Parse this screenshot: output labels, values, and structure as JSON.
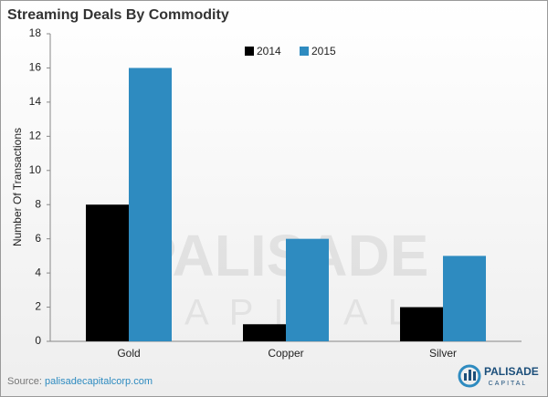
{
  "chart_data": {
    "type": "bar",
    "title": "Streaming Deals By Commodity",
    "y_label": "Number Of Transactions",
    "categories": [
      "Gold",
      "Copper",
      "Silver"
    ],
    "series": [
      {
        "name": "2014",
        "color": "#000000",
        "values": [
          8,
          1,
          2
        ]
      },
      {
        "name": "2015",
        "color": "#2e8bc0",
        "values": [
          16,
          6,
          5
        ]
      }
    ],
    "ylim": [
      0,
      18
    ],
    "yticks": [
      0,
      2,
      4,
      6,
      8,
      10,
      12,
      14,
      16,
      18
    ],
    "grid": false,
    "legend": "top",
    "source": {
      "label": "Source:",
      "link": "palisadecapitalcorp.com"
    },
    "watermark": {
      "name": "PALISADE",
      "tagline": "CAPITAL"
    },
    "logo": {
      "name": "PALISADE",
      "tagline": "CAPITAL"
    }
  }
}
